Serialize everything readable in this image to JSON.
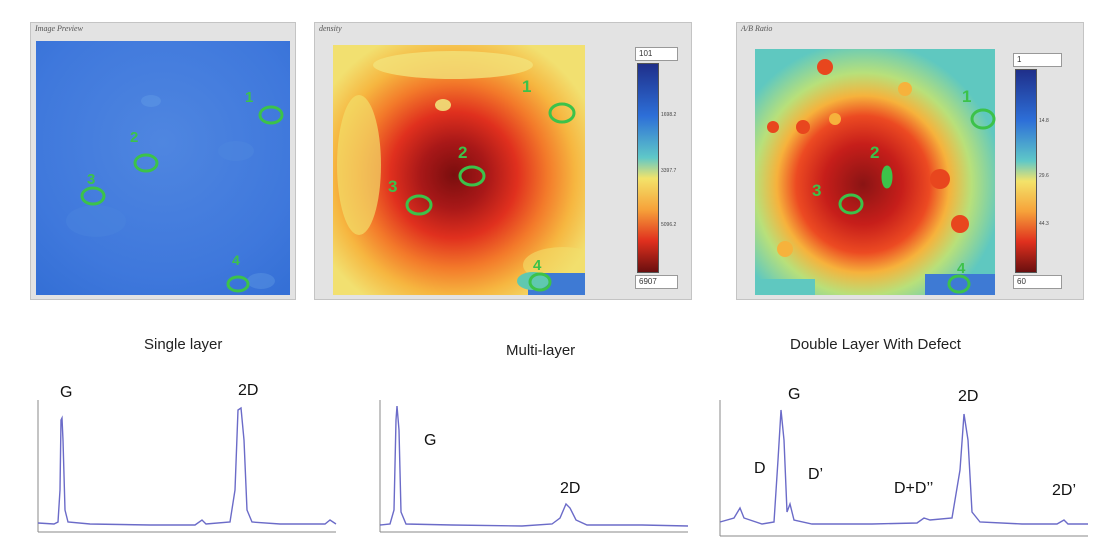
{
  "panels": [
    {
      "title": "Image Preview"
    },
    {
      "title": "density",
      "colorbar": {
        "top": "101",
        "bottom": "6907",
        "ticks": [
          "1698.2",
          "3397.7",
          "5096.2"
        ]
      }
    },
    {
      "title": "A/B Ratio",
      "colorbar": {
        "top": "1",
        "bottom": "60",
        "ticks": [
          "14.8",
          "29.6",
          "44.3"
        ]
      }
    }
  ],
  "map_markers": [
    {
      "map": 0,
      "points": [
        {
          "label": "1"
        },
        {
          "label": "2"
        },
        {
          "label": "3"
        },
        {
          "label": "4"
        }
      ]
    },
    {
      "map": 1,
      "points": [
        {
          "label": "1"
        },
        {
          "label": "2"
        },
        {
          "label": "3"
        },
        {
          "label": "4"
        }
      ]
    },
    {
      "map": 2,
      "points": [
        {
          "label": "1"
        },
        {
          "label": "2"
        },
        {
          "label": "3"
        },
        {
          "label": "4"
        }
      ]
    }
  ],
  "spectra": [
    {
      "caption": "Single layer",
      "peaks": [
        "G",
        "2D"
      ]
    },
    {
      "caption": "Multi-layer",
      "peaks": [
        "G",
        "2D"
      ]
    },
    {
      "caption": "Double Layer With Defect",
      "peaks": [
        "D",
        "G",
        "D’",
        "D+D’’",
        "2D",
        "2D’"
      ]
    }
  ],
  "colors": {
    "marker": "#3cc24a",
    "spectrum_line": "#6b6bc8",
    "panel_bg": "#e3e3e3"
  }
}
